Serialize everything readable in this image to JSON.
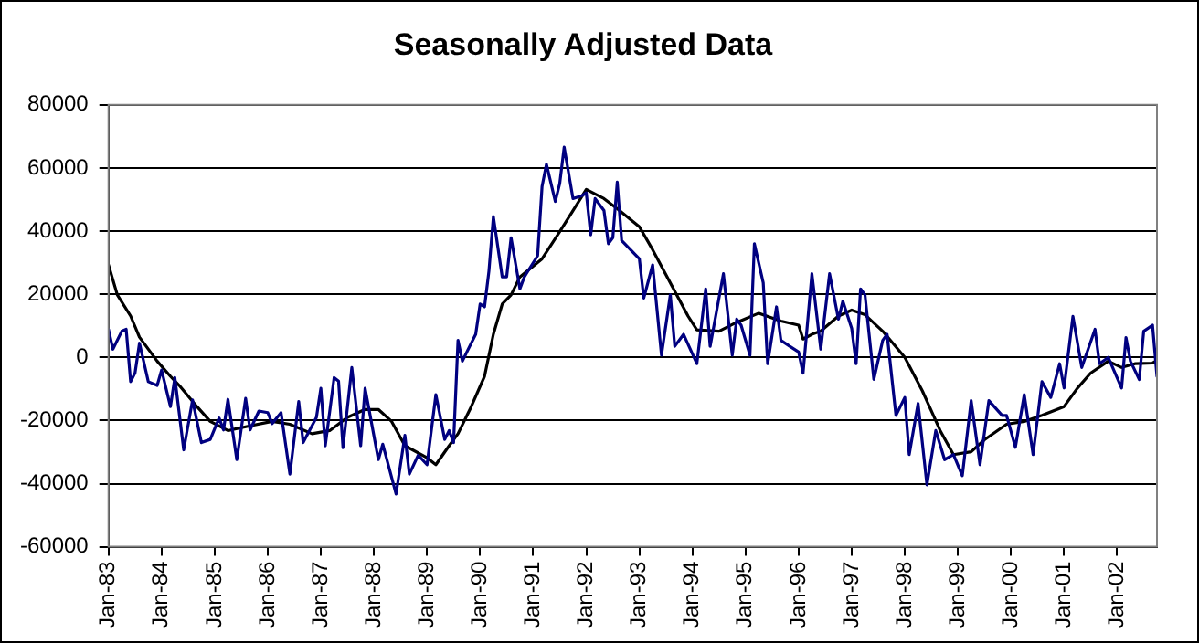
{
  "chart_data": {
    "type": "line",
    "title": "Seasonally Adjusted Data",
    "grid": "y",
    "legend": false,
    "marker": "none",
    "line_style": "solid",
    "xlim": [
      "1983-01",
      "2002-10"
    ],
    "xticks": [
      {
        "value": "1983-01",
        "label": "Jan-83"
      },
      {
        "value": "1984-01",
        "label": "Jan-84"
      },
      {
        "value": "1985-01",
        "label": "Jan-85"
      },
      {
        "value": "1986-01",
        "label": "Jan-86"
      },
      {
        "value": "1987-01",
        "label": "Jan-87"
      },
      {
        "value": "1988-01",
        "label": "Jan-88"
      },
      {
        "value": "1989-01",
        "label": "Jan-89"
      },
      {
        "value": "1990-01",
        "label": "Jan-90"
      },
      {
        "value": "1991-01",
        "label": "Jan-91"
      },
      {
        "value": "1992-01",
        "label": "Jan-92"
      },
      {
        "value": "1993-01",
        "label": "Jan-93"
      },
      {
        "value": "1994-01",
        "label": "Jan-94"
      },
      {
        "value": "1995-01",
        "label": "Jan-95"
      },
      {
        "value": "1996-01",
        "label": "Jan-96"
      },
      {
        "value": "1997-01",
        "label": "Jan-97"
      },
      {
        "value": "1998-01",
        "label": "Jan-98"
      },
      {
        "value": "1999-01",
        "label": "Jan-99"
      },
      {
        "value": "2000-01",
        "label": "Jan-00"
      },
      {
        "value": "2001-01",
        "label": "Jan-01"
      },
      {
        "value": "2002-01",
        "label": "Jan-02"
      }
    ],
    "ylim": [
      -60000,
      80000
    ],
    "yticks": [
      -60000,
      -40000,
      -20000,
      0,
      20000,
      40000,
      60000,
      80000
    ],
    "series": [
      {
        "color": "#000080",
        "x": [
          "1983-01",
          "1983-02",
          "1983-04",
          "1983-05",
          "1983-06",
          "1983-07",
          "1983-08",
          "1983-10",
          "1983-12",
          "1984-01",
          "1984-03",
          "1984-04",
          "1984-06",
          "1984-08",
          "1984-10",
          "1984-12",
          "1985-02",
          "1985-03",
          "1985-04",
          "1985-06",
          "1985-08",
          "1985-09",
          "1985-11",
          "1986-01",
          "1986-02",
          "1986-04",
          "1986-06",
          "1986-08",
          "1986-09",
          "1986-12",
          "1987-01",
          "1987-02",
          "1987-04",
          "1987-05",
          "1987-06",
          "1987-08",
          "1987-10",
          "1987-11",
          "1988-02",
          "1988-03",
          "1988-06",
          "1988-08",
          "1988-09",
          "1988-11",
          "1989-01",
          "1989-03",
          "1989-05",
          "1989-06",
          "1989-07",
          "1989-08",
          "1989-09",
          "1989-10",
          "1989-12",
          "1990-01",
          "1990-02",
          "1990-03",
          "1990-04",
          "1990-06",
          "1990-07",
          "1990-08",
          "1990-10",
          "1990-11",
          "1991-02",
          "1991-03",
          "1991-04",
          "1991-06",
          "1991-07",
          "1991-08",
          "1991-10",
          "1991-12",
          "1992-01",
          "1992-02",
          "1992-03",
          "1992-05",
          "1992-06",
          "1992-07",
          "1992-08",
          "1992-09",
          "1992-11",
          "1993-01",
          "1993-02",
          "1993-04",
          "1993-06",
          "1993-08",
          "1993-09",
          "1993-11",
          "1994-02",
          "1994-04",
          "1994-05",
          "1994-08",
          "1994-10",
          "1994-11",
          "1994-12",
          "1995-02",
          "1995-03",
          "1995-05",
          "1995-06",
          "1995-08",
          "1995-09",
          "1995-11",
          "1996-01",
          "1996-02",
          "1996-04",
          "1996-06",
          "1996-08",
          "1996-10",
          "1996-11",
          "1997-01",
          "1997-02",
          "1997-03",
          "1997-04",
          "1997-06",
          "1997-08",
          "1997-09",
          "1997-11",
          "1998-01",
          "1998-02",
          "1998-04",
          "1998-06",
          "1998-08",
          "1998-10",
          "1998-12",
          "1999-02",
          "1999-04",
          "1999-06",
          "1999-08",
          "1999-11",
          "1999-12",
          "2000-02",
          "2000-04",
          "2000-06",
          "2000-08",
          "2000-10",
          "2000-12",
          "2001-01",
          "2001-03",
          "2001-05",
          "2001-08",
          "2001-09",
          "2001-11",
          "2002-02",
          "2002-03",
          "2002-04",
          "2002-06",
          "2002-07",
          "2002-09",
          "2002-10"
        ],
        "values": [
          8900,
          2600,
          8300,
          8900,
          -7700,
          -4900,
          4500,
          -7700,
          -8900,
          -4000,
          -15600,
          -6400,
          -29300,
          -13500,
          -27000,
          -26000,
          -19200,
          -23000,
          -13300,
          -32400,
          -13000,
          -23000,
          -17000,
          -17500,
          -21000,
          -17500,
          -37000,
          -14000,
          -27000,
          -19000,
          -9800,
          -28000,
          -6400,
          -7500,
          -28600,
          -3200,
          -28000,
          -9800,
          -32400,
          -27500,
          -43300,
          -24700,
          -37000,
          -31000,
          -34000,
          -11800,
          -26000,
          -23200,
          -27000,
          5400,
          -1200,
          1700,
          7300,
          16900,
          16000,
          27400,
          44600,
          25500,
          25500,
          37900,
          21700,
          25500,
          32200,
          54100,
          61200,
          49400,
          55100,
          66600,
          50300,
          51200,
          52100,
          38800,
          50300,
          46500,
          36000,
          37900,
          55500,
          37000,
          34100,
          31200,
          18800,
          29300,
          700,
          19800,
          3500,
          7300,
          -2000,
          21700,
          3500,
          26500,
          700,
          12100,
          10200,
          700,
          36000,
          23600,
          -2000,
          16000,
          5400,
          3500,
          1700,
          -5000,
          26500,
          2600,
          26500,
          12100,
          17800,
          9200,
          -2000,
          21700,
          19800,
          -7000,
          5400,
          7300,
          -18400,
          -12700,
          -30800,
          -14600,
          -40400,
          -23200,
          -32400,
          -30800,
          -37500,
          -13700,
          -34000,
          -13700,
          -18400,
          -18400,
          -28500,
          -11800,
          -30800,
          -7700,
          -12700,
          -2000,
          -9700,
          13000,
          -3200,
          8900,
          -2000,
          0,
          -9700,
          6300,
          -1200,
          -7000,
          8300,
          10200,
          -6000
        ]
      },
      {
        "color": "#000000",
        "x": [
          "1983-01",
          "1983-03",
          "1983-06",
          "1983-08",
          "1983-12",
          "1984-03",
          "1984-05",
          "1984-09",
          "1984-12",
          "1985-04",
          "1985-09",
          "1986-02",
          "1986-06",
          "1986-11",
          "1987-03",
          "1987-07",
          "1987-11",
          "1988-02",
          "1988-05",
          "1988-08",
          "1989-01",
          "1989-03",
          "1989-06",
          "1989-08",
          "1989-11",
          "1990-02",
          "1990-04",
          "1990-06",
          "1990-08",
          "1990-10",
          "1991-03",
          "1991-07",
          "1991-10",
          "1992-01",
          "1992-05",
          "1992-08",
          "1993-01",
          "1993-04",
          "1993-08",
          "1993-12",
          "1994-02",
          "1994-07",
          "1994-11",
          "1995-04",
          "1995-09",
          "1996-01",
          "1996-02",
          "1996-04",
          "1996-06",
          "1996-10",
          "1997-01",
          "1997-04",
          "1997-08",
          "1998-01",
          "1998-05",
          "1998-09",
          "1998-12",
          "1999-04",
          "1999-07",
          "1999-12",
          "2000-04",
          "2000-08",
          "2001-01",
          "2001-04",
          "2001-07",
          "2001-11",
          "2002-02",
          "2002-05",
          "2002-09",
          "2002-10"
        ],
        "values": [
          29300,
          19800,
          13100,
          6400,
          -1200,
          -6000,
          -8900,
          -15600,
          -20300,
          -23200,
          -21700,
          -20300,
          -21200,
          -24200,
          -23200,
          -19000,
          -16500,
          -16500,
          -20300,
          -28000,
          -31800,
          -34000,
          -28000,
          -24200,
          -15600,
          -6000,
          7300,
          16900,
          19800,
          25500,
          31200,
          39800,
          46500,
          53200,
          50300,
          47100,
          41400,
          34100,
          23600,
          13100,
          8700,
          8300,
          11100,
          14000,
          11500,
          10200,
          5800,
          7300,
          8300,
          13100,
          15000,
          13500,
          8300,
          0,
          -10700,
          -23200,
          -30800,
          -29900,
          -26100,
          -21200,
          -20300,
          -18400,
          -15600,
          -9800,
          -5000,
          -1200,
          -3200,
          -2000,
          -1800,
          -1000
        ]
      }
    ]
  }
}
